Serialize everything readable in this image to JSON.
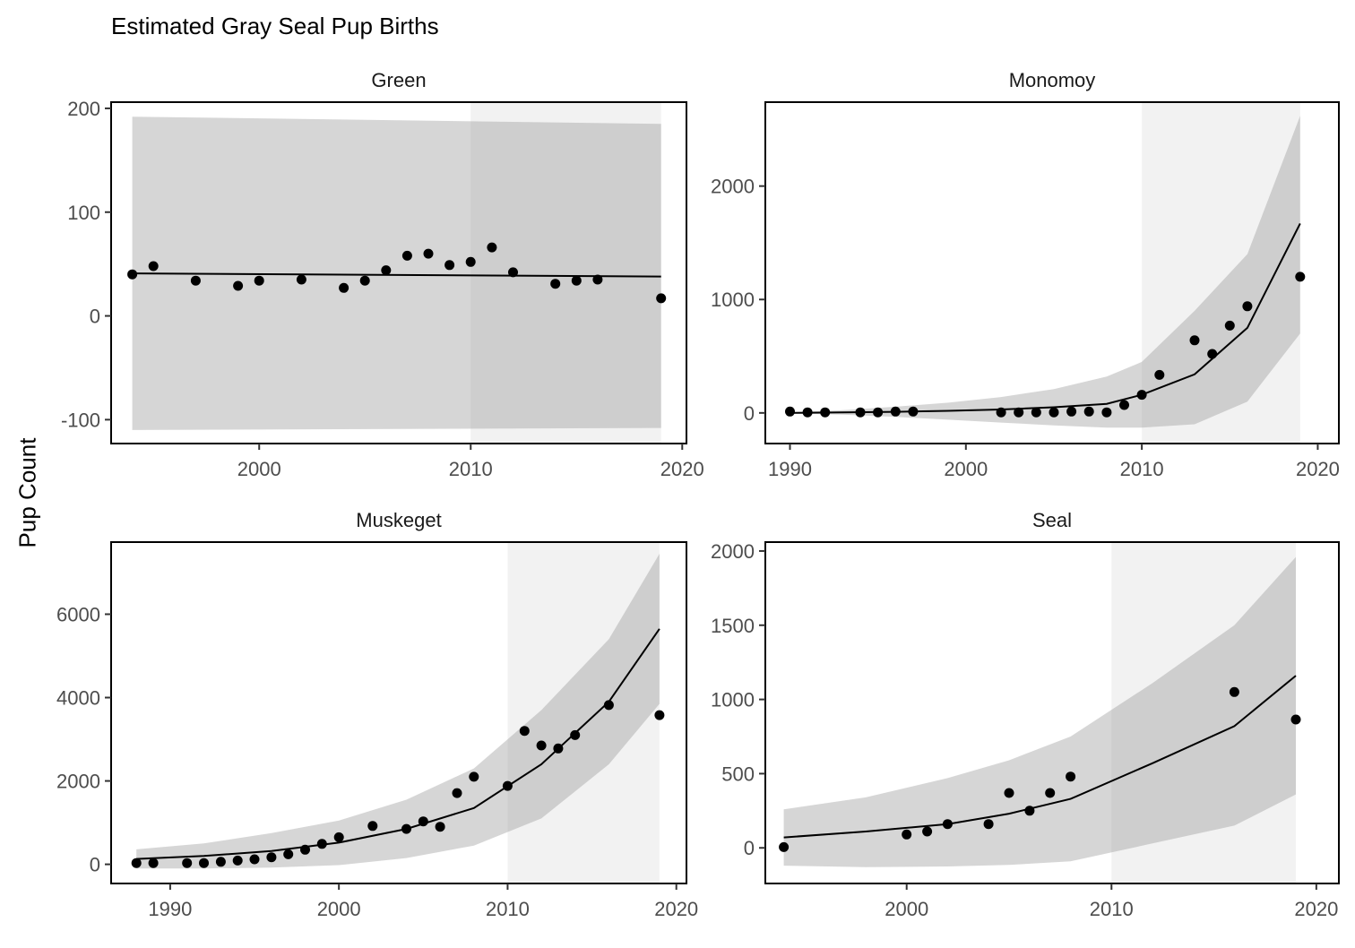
{
  "chart_data": {
    "type": "line",
    "title": "Estimated Gray Seal Pup Births",
    "ylabel": "Pup Count",
    "xlabel": "",
    "legend": "none",
    "grid": false,
    "panels": [
      {
        "name": "Green",
        "xlim": [
          1993,
          2020.2
        ],
        "ylim": [
          -123,
          206
        ],
        "xticks": [
          2000,
          2010,
          2020
        ],
        "yticks": [
          -100,
          0,
          100,
          200
        ],
        "forecast_start": 2010,
        "x_end": 2019,
        "points": {
          "x": [
            1994,
            1995,
            1997,
            1999,
            2000,
            2002,
            2004,
            2005,
            2006,
            2007,
            2008,
            2009,
            2010,
            2011,
            2012,
            2014,
            2015,
            2016,
            2019
          ],
          "y": [
            40,
            48,
            34,
            29,
            34,
            35,
            27,
            34,
            44,
            58,
            60,
            49,
            52,
            66,
            42,
            31,
            34,
            35,
            17
          ]
        },
        "fit": {
          "x": [
            1994,
            2019
          ],
          "y": [
            41,
            38
          ]
        },
        "band": {
          "x": [
            1994,
            2019
          ],
          "lower": [
            -110,
            -108
          ],
          "upper": [
            192,
            185
          ]
        }
      },
      {
        "name": "Monomoy",
        "xlim": [
          1988.6,
          2021.2
        ],
        "ylim": [
          -270,
          2740
        ],
        "xticks": [
          1990,
          2000,
          2010,
          2020
        ],
        "yticks": [
          0,
          1000,
          2000
        ],
        "forecast_start": 2010,
        "x_end": 2019,
        "points": {
          "x": [
            1990,
            1991,
            1992,
            1994,
            1995,
            1996,
            1997,
            2002,
            2003,
            2004,
            2005,
            2006,
            2007,
            2008,
            2009,
            2010,
            2011,
            2013,
            2014,
            2015,
            2016,
            2019
          ],
          "y": [
            12,
            5,
            5,
            5,
            5,
            12,
            12,
            5,
            5,
            5,
            5,
            12,
            12,
            5,
            70,
            160,
            335,
            640,
            520,
            770,
            940,
            1200
          ]
        },
        "fit": {
          "x": [
            1990,
            1993,
            1996,
            1999,
            2002,
            2005,
            2008,
            2010,
            2013,
            2016,
            2019
          ],
          "y": [
            0,
            5,
            10,
            18,
            30,
            50,
            80,
            160,
            340,
            750,
            1670
          ]
        },
        "band": {
          "x": [
            1990,
            1993,
            1996,
            1999,
            2002,
            2005,
            2008,
            2010,
            2013,
            2016,
            2019
          ],
          "lower": [
            -5,
            -15,
            -35,
            -60,
            -85,
            -110,
            -130,
            -130,
            -100,
            100,
            700
          ],
          "upper": [
            5,
            25,
            55,
            90,
            140,
            210,
            320,
            450,
            900,
            1400,
            2620
          ]
        }
      },
      {
        "name": "Muskeget",
        "xlim": [
          1986.5,
          2020.6
        ],
        "ylim": [
          -460,
          7730
        ],
        "xticks": [
          1990,
          2000,
          2010,
          2020
        ],
        "yticks": [
          0,
          2000,
          4000,
          6000
        ],
        "forecast_start": 2010,
        "x_end": 2019,
        "points": {
          "x": [
            1988,
            1989,
            1991,
            1992,
            1993,
            1994,
            1995,
            1996,
            1997,
            1998,
            1999,
            2000,
            2002,
            2004,
            2005,
            2006,
            2007,
            2008,
            2010,
            2011,
            2012,
            2013,
            2014,
            2016,
            2019
          ],
          "y": [
            30,
            30,
            30,
            30,
            60,
            90,
            120,
            170,
            240,
            350,
            490,
            650,
            920,
            850,
            1030,
            900,
            1710,
            2100,
            1880,
            3200,
            2850,
            2780,
            3100,
            3820,
            3580
          ]
        },
        "fit": {
          "x": [
            1988,
            1992,
            1996,
            2000,
            2004,
            2008,
            2012,
            2016,
            2019
          ],
          "y": [
            130,
            200,
            320,
            520,
            850,
            1350,
            2400,
            3900,
            5650
          ]
        },
        "band": {
          "x": [
            1988,
            1992,
            1996,
            2000,
            2004,
            2008,
            2012,
            2016,
            2019
          ],
          "lower": [
            -100,
            -100,
            -80,
            -20,
            150,
            450,
            1100,
            2400,
            3850
          ],
          "upper": [
            360,
            500,
            750,
            1050,
            1550,
            2300,
            3700,
            5400,
            7450
          ]
        }
      },
      {
        "name": "Seal",
        "xlim": [
          1993.1,
          2021.1
        ],
        "ylim": [
          -240,
          2060
        ],
        "xticks": [
          2000,
          2010,
          2020
        ],
        "yticks": [
          0,
          500,
          1000,
          1500,
          2000
        ],
        "forecast_start": 2010,
        "x_end": 2019,
        "points": {
          "x": [
            1994,
            2000,
            2001,
            2002,
            2004,
            2005,
            2006,
            2007,
            2008,
            2016,
            2019
          ],
          "y": [
            5,
            90,
            110,
            160,
            160,
            370,
            250,
            370,
            480,
            1050,
            865
          ]
        },
        "fit": {
          "x": [
            1994,
            1998,
            2002,
            2005,
            2008,
            2012,
            2016,
            2019
          ],
          "y": [
            70,
            110,
            160,
            230,
            330,
            570,
            820,
            1160
          ]
        },
        "band": {
          "x": [
            1994,
            1998,
            2002,
            2005,
            2008,
            2012,
            2016,
            2019
          ],
          "lower": [
            -120,
            -130,
            -125,
            -115,
            -90,
            30,
            150,
            360
          ],
          "upper": [
            260,
            340,
            470,
            590,
            750,
            1110,
            1500,
            1960
          ]
        }
      }
    ]
  },
  "colors": {
    "forecast_shade": "#f2f2f2",
    "band": "#999999",
    "band_opacity": 0.4,
    "points": "#000000",
    "line": "#000000",
    "axis": "#000000",
    "tick_label": "#4d4d4d"
  }
}
